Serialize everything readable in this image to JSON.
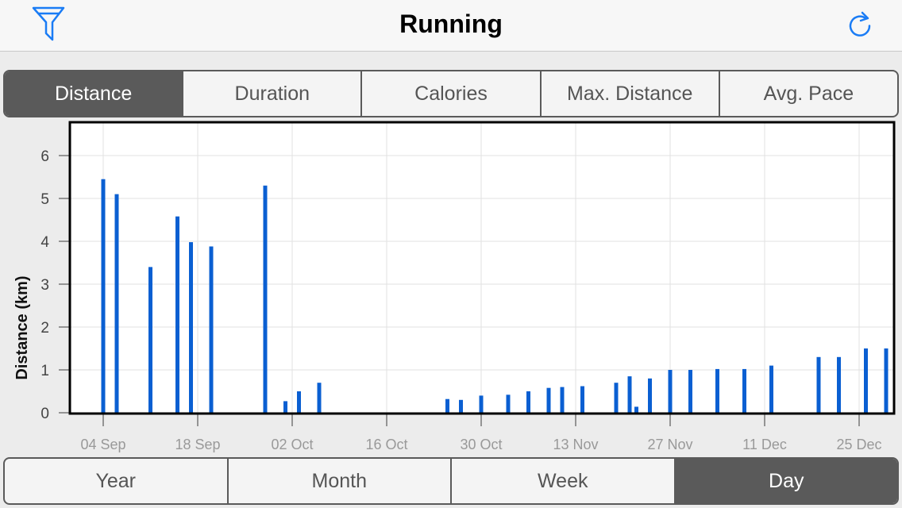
{
  "header": {
    "title": "Running",
    "filter_icon": "filter-icon",
    "refresh_icon": "refresh-icon"
  },
  "metric_tabs": {
    "selected": "Distance",
    "items": [
      {
        "label": "Distance"
      },
      {
        "label": "Duration"
      },
      {
        "label": "Calories"
      },
      {
        "label": "Max. Distance"
      },
      {
        "label": "Avg. Pace"
      }
    ]
  },
  "period_tabs": {
    "selected": "Day",
    "items": [
      {
        "label": "Year"
      },
      {
        "label": "Month"
      },
      {
        "label": "Week"
      },
      {
        "label": "Day"
      }
    ]
  },
  "colors": {
    "bar": "#0a5fd2",
    "selected_tab": "#5a5a5a",
    "icon": "#1a7cf5"
  },
  "chart_data": {
    "type": "bar",
    "ylabel": "Distance (km)",
    "xlabel": "",
    "ylim": [
      0,
      6.5
    ],
    "yticks": [
      "0",
      "1",
      "2",
      "3",
      "4",
      "5",
      "6"
    ],
    "xticks": [
      "04 Sep",
      "18 Sep",
      "02 Oct",
      "16 Oct",
      "30 Oct",
      "13 Nov",
      "27 Nov",
      "11 Dec",
      "25 Dec"
    ],
    "grid": true,
    "series": [
      {
        "values": [
          {
            "x": "04 Sep",
            "y": 5.45
          },
          {
            "x": "06 Sep",
            "y": 5.1
          },
          {
            "x": "11 Sep",
            "y": 3.4
          },
          {
            "x": "15 Sep",
            "y": 4.58
          },
          {
            "x": "17 Sep",
            "y": 3.98
          },
          {
            "x": "20 Sep",
            "y": 3.88
          },
          {
            "x": "28 Sep",
            "y": 5.3
          },
          {
            "x": "01 Oct",
            "y": 0.27
          },
          {
            "x": "03 Oct",
            "y": 0.5
          },
          {
            "x": "06 Oct",
            "y": 0.7
          },
          {
            "x": "25 Oct",
            "y": 0.32
          },
          {
            "x": "27 Oct",
            "y": 0.3
          },
          {
            "x": "30 Oct",
            "y": 0.4
          },
          {
            "x": "03 Nov",
            "y": 0.42
          },
          {
            "x": "06 Nov",
            "y": 0.5
          },
          {
            "x": "09 Nov",
            "y": 0.58
          },
          {
            "x": "11 Nov",
            "y": 0.6
          },
          {
            "x": "14 Nov",
            "y": 0.62
          },
          {
            "x": "19 Nov",
            "y": 0.7
          },
          {
            "x": "21 Nov",
            "y": 0.85
          },
          {
            "x": "22 Nov",
            "y": 0.14
          },
          {
            "x": "24 Nov",
            "y": 0.8
          },
          {
            "x": "27 Nov",
            "y": 1.0
          },
          {
            "x": "30 Nov",
            "y": 1.0
          },
          {
            "x": "04 Dec",
            "y": 1.02
          },
          {
            "x": "08 Dec",
            "y": 1.02
          },
          {
            "x": "12 Dec",
            "y": 1.1
          },
          {
            "x": "19 Dec",
            "y": 1.3
          },
          {
            "x": "22 Dec",
            "y": 1.3
          },
          {
            "x": "26 Dec",
            "y": 1.5
          },
          {
            "x": "29 Dec",
            "y": 1.5
          }
        ]
      }
    ]
  }
}
